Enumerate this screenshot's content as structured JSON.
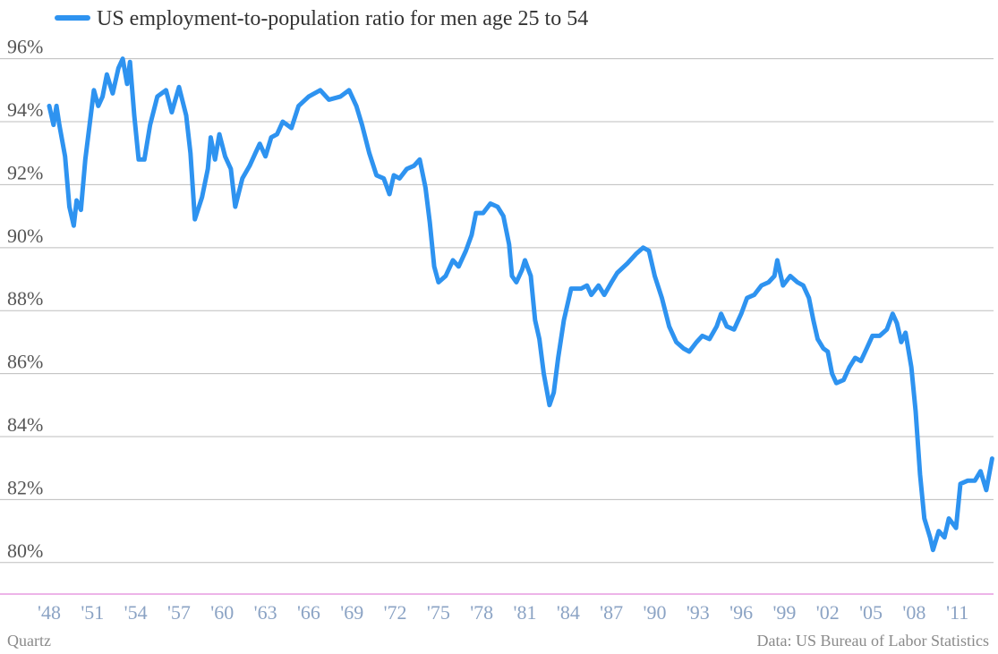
{
  "chart_data": {
    "type": "line",
    "series": [
      {
        "name": "US employment-to-population ratio for men age 25 to 54",
        "color": "#2e93f0",
        "x": [
          1948.0,
          1948.3,
          1948.5,
          1948.7,
          1949.1,
          1949.4,
          1949.7,
          1949.9,
          1950.2,
          1950.5,
          1950.8,
          1951.1,
          1951.4,
          1951.7,
          1952.0,
          1952.4,
          1952.8,
          1953.1,
          1953.4,
          1953.6,
          1953.9,
          1954.2,
          1954.6,
          1955.0,
          1955.5,
          1956.1,
          1956.5,
          1957.0,
          1957.5,
          1957.8,
          1958.1,
          1958.6,
          1959.0,
          1959.2,
          1959.5,
          1959.8,
          1960.2,
          1960.6,
          1960.9,
          1961.4,
          1961.9,
          1962.3,
          1962.6,
          1963.0,
          1963.4,
          1963.8,
          1964.2,
          1964.8,
          1965.3,
          1966.0,
          1966.8,
          1967.4,
          1968.2,
          1968.8,
          1969.3,
          1969.7,
          1970.2,
          1970.7,
          1971.2,
          1971.6,
          1971.9,
          1972.3,
          1972.8,
          1973.3,
          1973.7,
          1974.1,
          1974.4,
          1974.7,
          1975.0,
          1975.5,
          1976.0,
          1976.4,
          1976.9,
          1977.3,
          1977.6,
          1978.1,
          1978.6,
          1979.1,
          1979.5,
          1979.9,
          1980.1,
          1980.4,
          1980.8,
          1981.0,
          1981.4,
          1981.7,
          1982.0,
          1982.3,
          1982.7,
          1983.0,
          1983.3,
          1983.7,
          1984.2,
          1984.9,
          1985.3,
          1985.6,
          1986.1,
          1986.5,
          1987.0,
          1987.4,
          1988.1,
          1988.7,
          1989.2,
          1989.6,
          1990.0,
          1990.5,
          1991.0,
          1991.5,
          1992.0,
          1992.4,
          1992.9,
          1993.3,
          1993.8,
          1994.3,
          1994.6,
          1995.0,
          1995.5,
          1996.0,
          1996.4,
          1996.9,
          1997.4,
          1997.9,
          1998.3,
          1998.5,
          1998.9,
          1999.4,
          1999.9,
          2000.3,
          2000.7,
          2001.0,
          2001.3,
          2001.7,
          2002.0,
          2002.3,
          2002.6,
          2003.1,
          2003.5,
          2003.9,
          2004.3,
          2004.7,
          2005.1,
          2005.6,
          2006.1,
          2006.5,
          2006.8,
          2007.1,
          2007.4,
          2007.8,
          2008.1,
          2008.4,
          2008.7,
          2009.1,
          2009.3,
          2009.7,
          2010.1,
          2010.4,
          2010.9,
          2011.2,
          2011.7,
          2012.2,
          2012.6,
          2013.0,
          2013.4
        ],
        "values": [
          94.5,
          93.9,
          94.5,
          93.9,
          92.9,
          91.3,
          90.7,
          91.5,
          91.2,
          92.8,
          93.9,
          95.0,
          94.5,
          94.8,
          95.5,
          94.9,
          95.7,
          96.0,
          95.2,
          95.9,
          94.2,
          92.8,
          92.8,
          93.9,
          94.8,
          95.0,
          94.3,
          95.1,
          94.2,
          93.0,
          90.9,
          91.6,
          92.5,
          93.5,
          92.8,
          93.6,
          92.9,
          92.5,
          91.3,
          92.2,
          92.6,
          93.0,
          93.3,
          92.9,
          93.5,
          93.6,
          94.0,
          93.8,
          94.5,
          94.8,
          95.0,
          94.7,
          94.8,
          95.0,
          94.5,
          93.9,
          93.0,
          92.3,
          92.2,
          91.7,
          92.3,
          92.2,
          92.5,
          92.6,
          92.8,
          91.9,
          90.8,
          89.4,
          88.9,
          89.1,
          89.6,
          89.4,
          89.9,
          90.4,
          91.1,
          91.1,
          91.4,
          91.3,
          91.0,
          90.1,
          89.1,
          88.9,
          89.3,
          89.6,
          89.1,
          87.7,
          87.1,
          86.0,
          85.0,
          85.4,
          86.5,
          87.7,
          88.7,
          88.7,
          88.8,
          88.5,
          88.8,
          88.5,
          88.9,
          89.2,
          89.5,
          89.8,
          90.0,
          89.9,
          89.1,
          88.4,
          87.5,
          87.0,
          86.8,
          86.7,
          87.0,
          87.2,
          87.1,
          87.5,
          87.9,
          87.5,
          87.4,
          87.9,
          88.4,
          88.5,
          88.8,
          88.9,
          89.1,
          89.6,
          88.8,
          89.1,
          88.9,
          88.8,
          88.4,
          87.7,
          87.1,
          86.8,
          86.7,
          86.0,
          85.7,
          85.8,
          86.2,
          86.5,
          86.4,
          86.8,
          87.2,
          87.2,
          87.4,
          87.9,
          87.6,
          87.0,
          87.3,
          86.2,
          84.8,
          82.8,
          81.4,
          80.8,
          80.4,
          81.0,
          80.8,
          81.4,
          81.1,
          82.5,
          82.6,
          82.6,
          82.9,
          82.3,
          83.3
        ]
      }
    ],
    "xlim": [
      1948,
      2013.5
    ],
    "xticks": [
      {
        "value": 1948,
        "label": "'48"
      },
      {
        "value": 1951,
        "label": "'51"
      },
      {
        "value": 1954,
        "label": "'54"
      },
      {
        "value": 1957,
        "label": "'57"
      },
      {
        "value": 1960,
        "label": "'60"
      },
      {
        "value": 1963,
        "label": "'63"
      },
      {
        "value": 1966,
        "label": "'66"
      },
      {
        "value": 1969,
        "label": "'69"
      },
      {
        "value": 1972,
        "label": "'72"
      },
      {
        "value": 1975,
        "label": "'75"
      },
      {
        "value": 1978,
        "label": "'78"
      },
      {
        "value": 1981,
        "label": "'81"
      },
      {
        "value": 1984,
        "label": "'84"
      },
      {
        "value": 1987,
        "label": "'87"
      },
      {
        "value": 1990,
        "label": "'90"
      },
      {
        "value": 1993,
        "label": "'93"
      },
      {
        "value": 1996,
        "label": "'96"
      },
      {
        "value": 1999,
        "label": "'99"
      },
      {
        "value": 2002,
        "label": "'02"
      },
      {
        "value": 2005,
        "label": "'05"
      },
      {
        "value": 2008,
        "label": "'08"
      },
      {
        "value": 2011,
        "label": "'11"
      }
    ],
    "ylim": [
      79,
      96.7
    ],
    "yticks": [
      {
        "value": 80,
        "label": "80%"
      },
      {
        "value": 82,
        "label": "82%"
      },
      {
        "value": 84,
        "label": "84%"
      },
      {
        "value": 86,
        "label": "86%"
      },
      {
        "value": 88,
        "label": "88%"
      },
      {
        "value": 90,
        "label": "90%"
      },
      {
        "value": 92,
        "label": "92%"
      },
      {
        "value": 94,
        "label": "94%"
      },
      {
        "value": 96,
        "label": "96%"
      }
    ],
    "grid": true,
    "credit": "Quartz",
    "source": "Data: US Bureau of Labor Statistics"
  }
}
